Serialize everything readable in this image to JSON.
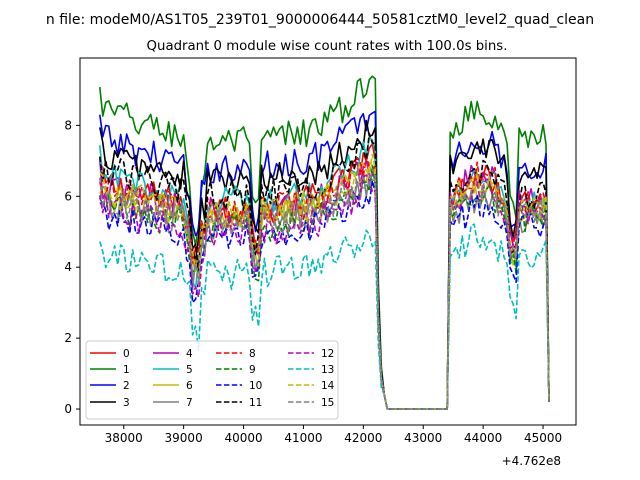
{
  "figure": {
    "suptitle": "n file: modeM0/AS1T05_239T01_9000006444_50581cztM0_level2_quad_clean",
    "offset_label": "+4.762e8"
  },
  "chart_data": {
    "type": "line",
    "title": "Quadrant 0 module wise count rates with 100.0s bins.",
    "xlabel": "",
    "ylabel": "",
    "xlim": [
      37270,
      45550
    ],
    "ylim": [
      -0.45,
      9.9
    ],
    "x_ticks": [
      38000,
      39000,
      40000,
      41000,
      42000,
      43000,
      44000,
      45000
    ],
    "x_tick_labels": [
      "38000",
      "39000",
      "40000",
      "41000",
      "42000",
      "43000",
      "44000",
      "45000"
    ],
    "y_ticks": [
      0,
      2,
      4,
      6,
      8
    ],
    "y_tick_labels": [
      "0",
      "2",
      "4",
      "6",
      "8"
    ],
    "x_segments": [
      {
        "start": 37600,
        "end": 42200,
        "step": 50
      },
      {
        "start": 42250,
        "end": 43400,
        "step": 50
      },
      {
        "start": 43450,
        "end": 45100,
        "step": 50
      }
    ],
    "legend": {
      "position": "lower-left",
      "columns": 4
    },
    "series": [
      {
        "name": "0",
        "color": "#ff0000",
        "dash": "solid",
        "level": 6.1,
        "drop": 0.9,
        "late_scale": 1.0
      },
      {
        "name": "1",
        "color": "#008000",
        "dash": "solid",
        "level": 8.1,
        "drop": 1.8,
        "late_scale": 0.98
      },
      {
        "name": "2",
        "color": "#0000ff",
        "dash": "solid",
        "level": 7.3,
        "drop": 1.4,
        "late_scale": 0.97
      },
      {
        "name": "3",
        "color": "#000000",
        "dash": "solid",
        "level": 6.9,
        "drop": 1.3,
        "late_scale": 1.0
      },
      {
        "name": "4",
        "color": "#bf00bf",
        "dash": "solid",
        "level": 6.0,
        "drop": 1.2,
        "late_scale": 1.03
      },
      {
        "name": "5",
        "color": "#00bfbf",
        "dash": "solid",
        "level": 6.3,
        "drop": 1.4,
        "late_scale": 0.97
      },
      {
        "name": "6",
        "color": "#bfbf00",
        "dash": "solid",
        "level": 5.8,
        "drop": 1.0,
        "late_scale": 1.0
      },
      {
        "name": "7",
        "color": "#808080",
        "dash": "solid",
        "level": 5.6,
        "drop": 1.0,
        "late_scale": 0.98
      },
      {
        "name": "8",
        "color": "#ff0000",
        "dash": "dashed",
        "level": 6.0,
        "drop": 1.0,
        "late_scale": 1.02
      },
      {
        "name": "9",
        "color": "#008000",
        "dash": "dashed",
        "level": 5.5,
        "drop": 1.1,
        "late_scale": 1.02
      },
      {
        "name": "10",
        "color": "#0000ff",
        "dash": "dashed",
        "level": 5.3,
        "drop": 1.2,
        "late_scale": 1.0
      },
      {
        "name": "11",
        "color": "#000000",
        "dash": "dashed",
        "level": 6.5,
        "drop": 1.2,
        "late_scale": 0.96
      },
      {
        "name": "12",
        "color": "#bf00bf",
        "dash": "dashed",
        "level": 5.4,
        "drop": 1.0,
        "late_scale": 1.06
      },
      {
        "name": "13",
        "color": "#00bfbf",
        "dash": "dashed",
        "level": 4.1,
        "drop": 1.2,
        "late_scale": 1.1
      },
      {
        "name": "14",
        "color": "#bfbf00",
        "dash": "dashed",
        "level": 5.9,
        "drop": 1.0,
        "late_scale": 1.02
      },
      {
        "name": "15",
        "color": "#808080",
        "dash": "dashed",
        "level": 5.7,
        "drop": 1.0,
        "late_scale": 1.0
      }
    ]
  }
}
